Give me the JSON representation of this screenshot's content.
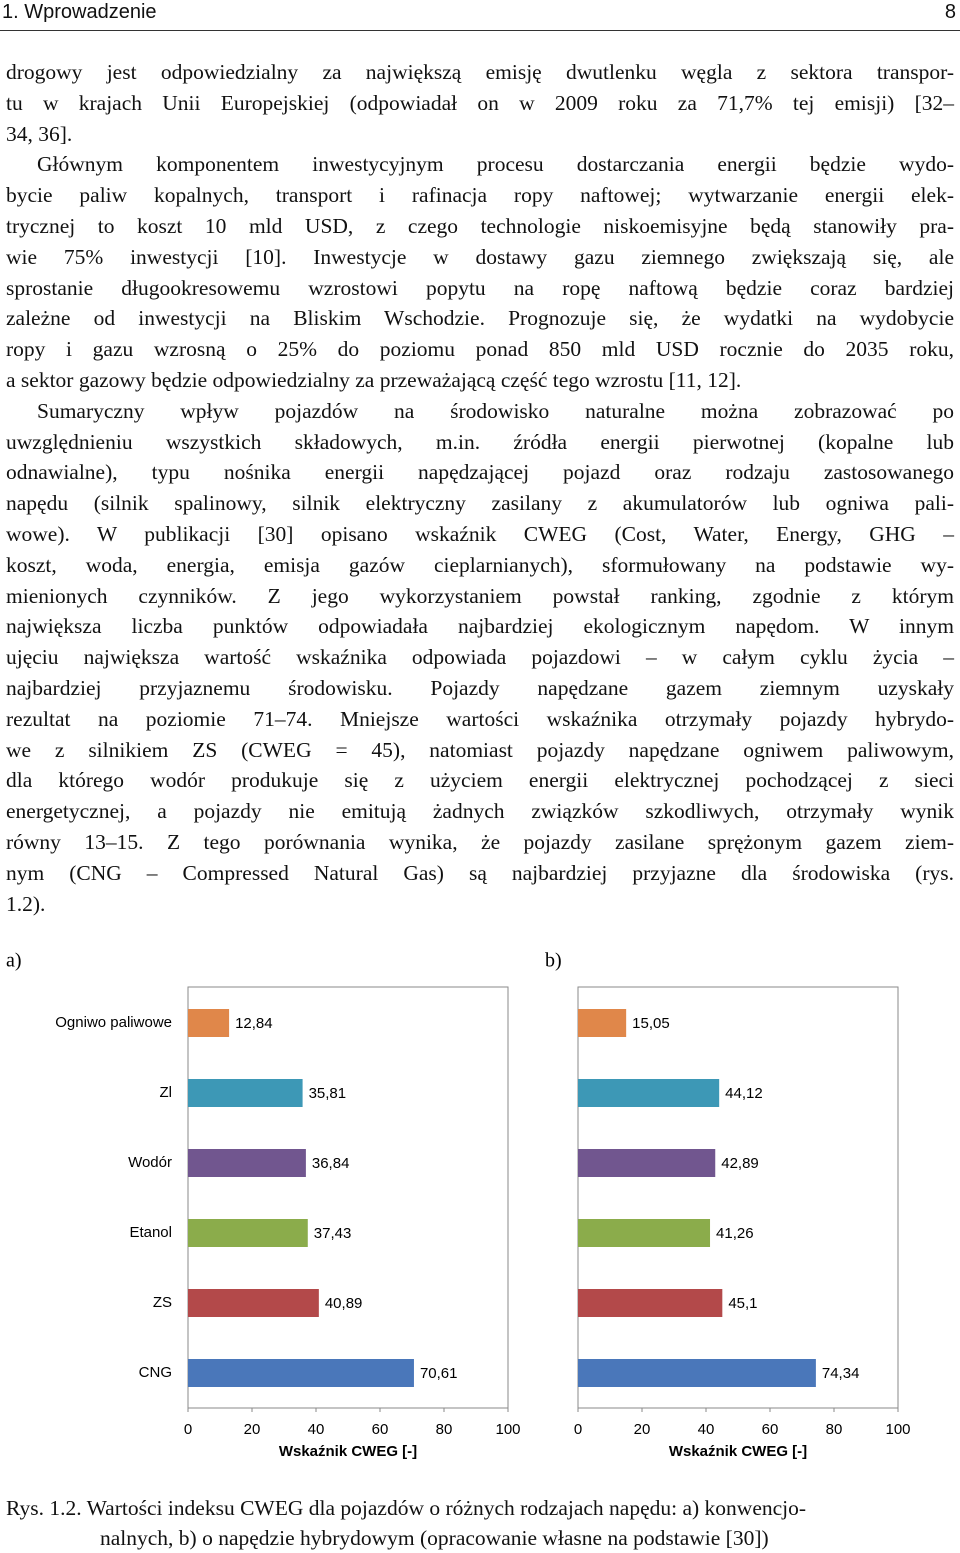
{
  "header": {
    "title": "1. Wprowadzenie",
    "page": "8"
  },
  "paragraphs": [
    [
      "drogowy jest odpowiedzialny za największą emisję dwutlenku węgla z sektora transpor-",
      "tu w krajach Unii Europejskiej (odpowiadał on w 2009 roku za 71,7% tej emisji) [32–",
      "34, 36]."
    ],
    [
      "Głównym komponentem inwestycyjnym procesu dostarczania energii będzie wydo-",
      "bycie paliw kopalnych, transport i rafinacja ropy naftowej; wytwarzanie energii elek-",
      "trycznej to koszt 10 mld USD, z czego technologie niskoemisyjne będą stanowiły pra-",
      "wie 75% inwestycji [10]. Inwestycje w dostawy gazu ziemnego zwiększają się, ale",
      "sprostanie długookresowemu wzrostowi popytu na ropę naftową będzie coraz bardziej",
      "zależne od inwestycji na Bliskim Wschodzie. Prognozuje się, że wydatki na wydobycie",
      "ropy i gazu wzrosną o 25% do poziomu ponad 850 mld USD rocznie do 2035 roku,",
      "a sektor gazowy będzie odpowiedzialny za przeważającą część tego wzrostu [11, 12]."
    ],
    [
      "Sumaryczny wpływ pojazdów na środowisko naturalne można zobrazować po",
      "uwzględnieniu wszystkich składowych, m.in. źródła energii pierwotnej (kopalne lub",
      "odnawialne), typu nośnika energii napędzającej pojazd oraz rodzaju zastosowanego",
      "napędu (silnik spalinowy, silnik elektryczny zasilany z akumulatorów lub ogniwa pali-",
      "wowe). W publikacji [30] opisano wskaźnik CWEG (Cost, Water, Energy, GHG –",
      "koszt, woda, energia, emisja gazów cieplarnianych), sformułowany na podstawie wy-",
      "mienionych czynników. Z jego wykorzystaniem powstał ranking, zgodnie z którym",
      "największa liczba punktów odpowiadała najbardziej ekologicznym napędom. W innym",
      "ujęciu największa wartość wskaźnika odpowiada pojazdowi – w całym cyklu życia –",
      "najbardziej przyjaznemu środowisku. Pojazdy napędzane gazem ziemnym uzyskały",
      "rezultat na poziomie 71–74. Mniejsze wartości wskaźnika otrzymały pojazdy hybrydo-",
      "we z silnikiem ZS (CWEG = 45), natomiast pojazdy napędzane ogniwem paliwowym,",
      "dla którego wodór produkuje się z użyciem energii elektrycznej pochodzącej z sieci",
      "energetycznej, a pojazdy nie emitują żadnych związków szkodliwych, otrzymały wynik",
      "równy 13–15. Z tego porównania wynika, że pojazdy zasilane sprężonym gazem ziem-",
      "nym (CNG – Compressed Natural Gas) są najbardziej przyjazne dla środowiska (rys.",
      "1.2)."
    ]
  ],
  "chart_data": [
    {
      "type": "bar",
      "orientation": "horizontal",
      "panel": "a)",
      "categories": [
        "Ogniwo paliwowe",
        "Zl",
        "Wodór",
        "Etanol",
        "ZS",
        "CNG"
      ],
      "values": [
        12.84,
        35.81,
        36.84,
        37.43,
        40.89,
        70.61
      ],
      "value_labels": [
        "12,84",
        "35,81",
        "36,84",
        "37,43",
        "40,89",
        "70,61"
      ],
      "colors": [
        "#e0874a",
        "#3d98b6",
        "#71568f",
        "#8bac4b",
        "#b3494a",
        "#4a77ba"
      ],
      "xlim": [
        0,
        100
      ],
      "xticks": [
        0,
        20,
        40,
        60,
        80,
        100
      ],
      "xlabel": "Wskaźnik CWEG [-]"
    },
    {
      "type": "bar",
      "orientation": "horizontal",
      "panel": "b)",
      "categories": [
        null,
        null,
        null,
        null,
        null,
        null
      ],
      "values": [
        15.05,
        44.12,
        42.89,
        41.26,
        45.1,
        74.34
      ],
      "value_labels": [
        "15,05",
        "44,12",
        "42,89",
        "41,26",
        "45,1",
        "74,34"
      ],
      "colors": [
        "#e0874a",
        "#3d98b6",
        "#71568f",
        "#8bac4b",
        "#b3494a",
        "#4a77ba"
      ],
      "xlim": [
        0,
        100
      ],
      "xticks": [
        0,
        20,
        40,
        60,
        80,
        100
      ],
      "xlabel": "Wskaźnik CWEG [-]"
    }
  ],
  "caption": [
    "Rys. 1.2. Wartości indeksu CWEG dla pojazdów o różnych rodzajach napędu: a) konwencjo-",
    "nalnych, b) o napędzie hybrydowym (opracowanie własne na podstawie [30])"
  ]
}
